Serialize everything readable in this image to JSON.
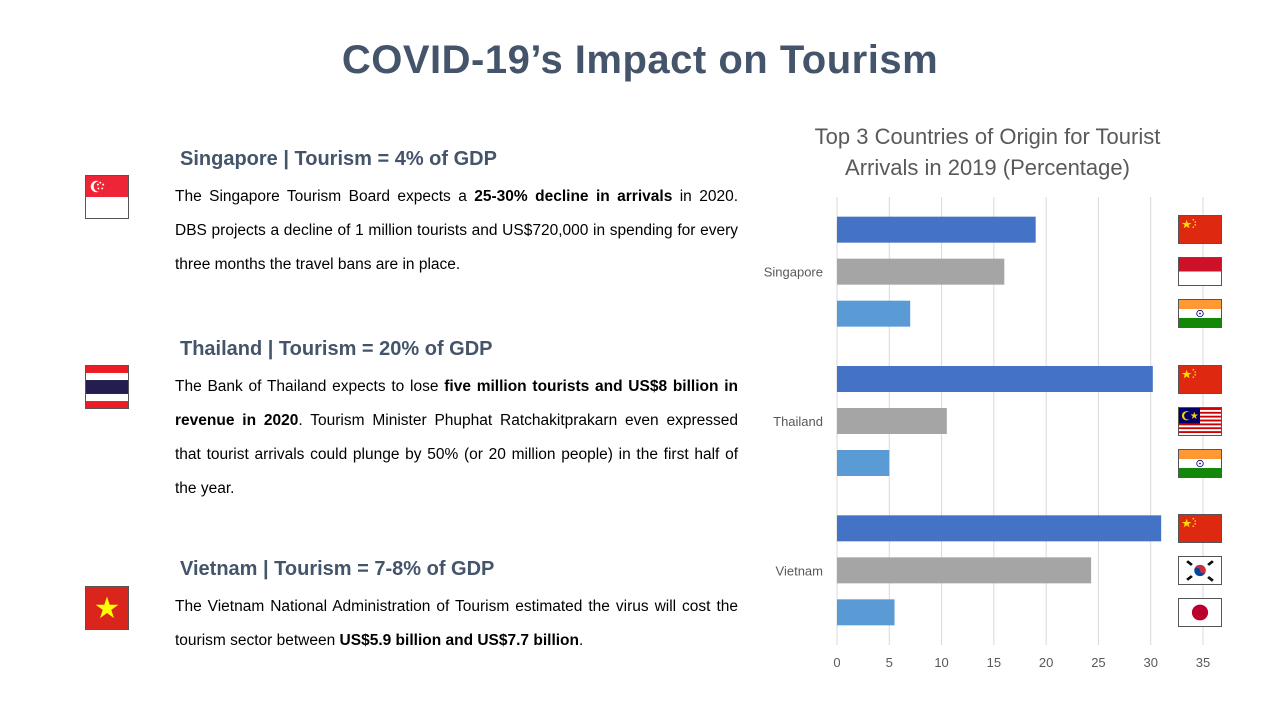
{
  "page": {
    "title": "COVID-19’s Impact on Tourism"
  },
  "sections": [
    {
      "heading": "Singapore | Tourism = 4% of GDP",
      "flag": "singapore-flag",
      "text": [
        {
          "t": "The Singapore Tourism Board expects a ",
          "b": false
        },
        {
          "t": "25-30% decline in arrivals",
          "b": true
        },
        {
          "t": " in 2020. DBS projects a decline of 1 million tourists and US$720,000 in spending for every three months the travel bans are in place.",
          "b": false
        }
      ]
    },
    {
      "heading": "Thailand | Tourism = 20% of GDP",
      "flag": "thailand-flag",
      "text": [
        {
          "t": "The Bank of Thailand expects to lose ",
          "b": false
        },
        {
          "t": "five million tourists and US$8 billion in revenue in 2020",
          "b": true
        },
        {
          "t": ". Tourism Minister Phuphat Ratchakitprakarn even expressed that tourist arrivals could plunge by 50% (or 20 million people) in the first half of the year.",
          "b": false
        }
      ]
    },
    {
      "heading": "Vietnam | Tourism = 7-8% of GDP",
      "flag": "vietnam-flag",
      "text": [
        {
          "t": "The Vietnam National Administration of Tourism estimated the virus will cost the tourism sector between ",
          "b": false
        },
        {
          "t": "US$5.9 billion and US$7.7 billion",
          "b": true
        },
        {
          "t": ".",
          "b": false
        }
      ]
    }
  ],
  "chart_data": {
    "type": "bar",
    "orientation": "horizontal",
    "title": "Top 3 Countries of Origin for Tourist Arrivals in 2019 (Percentage)",
    "categories": [
      "Singapore",
      "Thailand",
      "Vietnam"
    ],
    "series": [
      {
        "values": [
          19,
          30.2,
          31
        ],
        "color": "#4472c4"
      },
      {
        "values": [
          16,
          10.5,
          24.3
        ],
        "color": "#a5a5a5"
      },
      {
        "values": [
          7,
          5,
          5.5
        ],
        "color": "#5b9bd5"
      }
    ],
    "origin_flags": [
      [
        "china-flag",
        "indonesia-flag",
        "india-flag"
      ],
      [
        "china-flag",
        "malaysia-flag",
        "india-flag"
      ],
      [
        "china-flag",
        "south-korea-flag",
        "japan-flag"
      ]
    ],
    "xlim": [
      0,
      35
    ],
    "xticks": [
      "0",
      "5",
      "10",
      "15",
      "20",
      "25",
      "30",
      "35"
    ],
    "grid": true,
    "legend": "none"
  }
}
